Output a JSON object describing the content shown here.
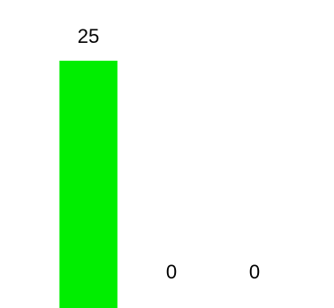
{
  "chart_data": {
    "type": "bar",
    "categories": [
      "",
      "",
      ""
    ],
    "values": [
      25,
      0,
      0
    ],
    "value_labels": [
      "25",
      "0",
      "0"
    ],
    "ylim": [
      0,
      25
    ],
    "grid": false,
    "legend": "none",
    "colors": {
      "bar": "#00ee00",
      "text": "#000000",
      "background": "#ffffff"
    }
  }
}
